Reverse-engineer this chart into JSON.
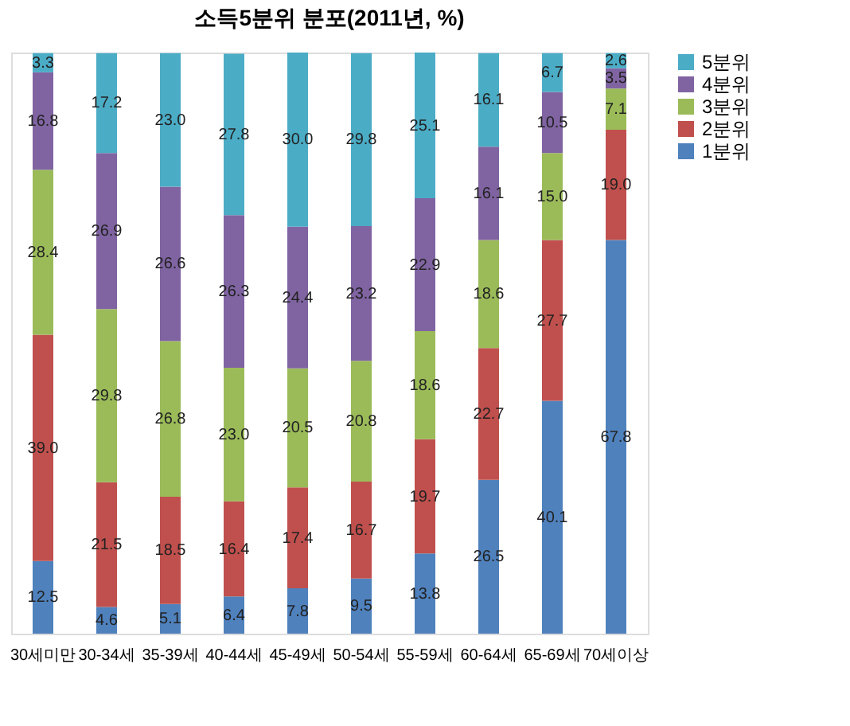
{
  "chart_data": {
    "type": "bar",
    "title": "소득5분위 분포(2011년, %)",
    "stacked": true,
    "legend": "right",
    "grid": false,
    "categories": [
      "30세미만",
      "30-34세",
      "35-39세",
      "40-44세",
      "45-49세",
      "50-54세",
      "55-59세",
      "60-64세",
      "65-69세",
      "70세이상"
    ],
    "series": [
      {
        "name": "1분위",
        "color": "#4f81bd",
        "values": [
          12.5,
          4.6,
          5.1,
          6.4,
          7.8,
          9.5,
          13.8,
          26.5,
          40.1,
          67.8
        ],
        "value_labels": [
          "12.5",
          "4.6",
          "5.1",
          "6.4",
          "7.8",
          "9.5",
          "13.8",
          "26.5",
          "40.1",
          "67.8"
        ]
      },
      {
        "name": "2분위",
        "color": "#c0504d",
        "values": [
          39.0,
          21.5,
          18.5,
          16.4,
          17.4,
          16.7,
          19.7,
          22.7,
          27.7,
          19.0
        ],
        "value_labels": [
          "39.0",
          "21.5",
          "18.5",
          "16.4",
          "17.4",
          "16.7",
          "19.7",
          "22.7",
          "27.7",
          "19.0"
        ]
      },
      {
        "name": "3분위",
        "color": "#9bbb59",
        "values": [
          28.4,
          29.8,
          26.8,
          23.0,
          20.5,
          20.8,
          18.6,
          18.6,
          15.0,
          7.1
        ],
        "value_labels": [
          "28.4",
          "29.8",
          "26.8",
          "23.0",
          "20.5",
          "20.8",
          "18.6",
          "18.6",
          "15.0",
          "7.1"
        ]
      },
      {
        "name": "4분위",
        "color": "#8064a2",
        "values": [
          16.8,
          26.9,
          26.6,
          26.3,
          24.4,
          23.2,
          22.9,
          16.1,
          10.5,
          3.5
        ],
        "value_labels": [
          "16.8",
          "26.9",
          "26.6",
          "26.3",
          "24.4",
          "23.2",
          "22.9",
          "16.1",
          "10.5",
          "3.5"
        ]
      },
      {
        "name": "5분위",
        "color": "#4bacc6",
        "values": [
          3.3,
          17.2,
          23.0,
          27.8,
          30.0,
          29.8,
          25.1,
          16.1,
          6.7,
          2.6
        ],
        "value_labels": [
          "3.3",
          "17.2",
          "23.0",
          "27.8",
          "30.0",
          "29.8",
          "25.1",
          "16.1",
          "6.7",
          "2.6"
        ]
      }
    ]
  }
}
